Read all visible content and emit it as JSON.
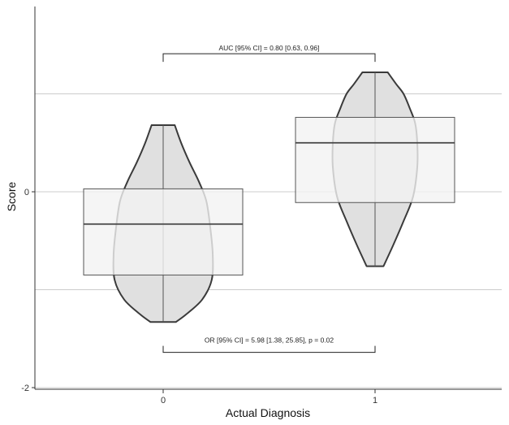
{
  "chart_data": {
    "type": "violin-box",
    "xlabel": "Actual Diagnosis",
    "ylabel": "Score",
    "categories": [
      "0",
      "1"
    ],
    "y_ticks": [
      -2,
      0
    ],
    "ylim": [
      -2,
      1.9
    ],
    "grid": "horizontal",
    "groups": [
      {
        "category": "0",
        "violin_min": -1.33,
        "violin_max": 0.68,
        "box": {
          "q1": -0.85,
          "median": -0.33,
          "q3": 0.03
        },
        "density_profile": [
          [
            -1.33,
            0.12
          ],
          [
            -1.25,
            0.22
          ],
          [
            -1.1,
            0.37
          ],
          [
            -0.9,
            0.46
          ],
          [
            -0.65,
            0.47
          ],
          [
            -0.4,
            0.45
          ],
          [
            -0.1,
            0.41
          ],
          [
            0.1,
            0.34
          ],
          [
            0.3,
            0.25
          ],
          [
            0.5,
            0.17
          ],
          [
            0.68,
            0.11
          ]
        ]
      },
      {
        "category": "1",
        "violin_min": -0.76,
        "violin_max": 1.22,
        "box": {
          "q1": -0.11,
          "median": 0.5,
          "q3": 0.76
        },
        "density_profile": [
          [
            -0.76,
            0.08
          ],
          [
            -0.55,
            0.17
          ],
          [
            -0.3,
            0.27
          ],
          [
            -0.05,
            0.36
          ],
          [
            0.25,
            0.4
          ],
          [
            0.5,
            0.4
          ],
          [
            0.7,
            0.38
          ],
          [
            0.85,
            0.33
          ],
          [
            1.0,
            0.27
          ],
          [
            1.1,
            0.2
          ],
          [
            1.22,
            0.12
          ]
        ]
      }
    ],
    "annotations": [
      {
        "text": "AUC [95% CI] = 0.80 [0.63, 0.96]",
        "position": "top",
        "y": 1.41
      },
      {
        "text": "OR [95% CI] = 5.98 [1.38, 25.85], p = 0.02",
        "position": "bottom",
        "y": -1.64
      }
    ],
    "colors": {
      "violin_fill": "#e0e0e0",
      "violin_outline": "#3a3a3a",
      "box_fill": "#f2f2f2",
      "box_outline": "#555555",
      "median_line": "#444444",
      "grid": "#cccccc"
    }
  }
}
